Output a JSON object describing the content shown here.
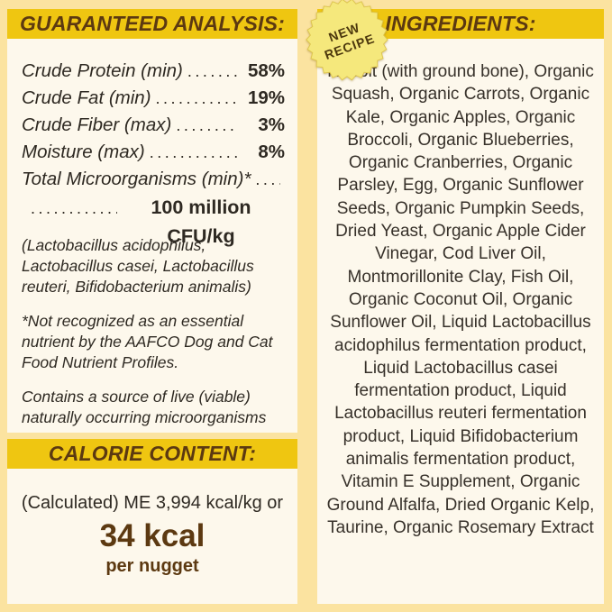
{
  "colors": {
    "outer_background": "#fbe3a0",
    "panel_background": "#fdf8ec",
    "header_bar_yellow": "#efc611",
    "header_text_brown": "#5c3911",
    "body_text": "#2e2922",
    "badge_fill": "#f5e87c",
    "badge_text": "#4c380d"
  },
  "leader": "......................................",
  "guaranteed_analysis": {
    "title": "GUARANTEED ANALYSIS:",
    "rows": [
      {
        "label": "Crude Protein (min)",
        "value": "58%"
      },
      {
        "label": "Crude Fat (min)",
        "value": "19%"
      },
      {
        "label": "Crude Fiber (max)",
        "value": "3%"
      },
      {
        "label": "Moisture (max)",
        "value": "8%"
      },
      {
        "label": "Total Microorganisms (min)*",
        "value": ""
      }
    ],
    "cfu_value": "100 million CFU/kg",
    "organisms_note": "(Lactobacillus acidophilus, Lactobacillus casei, Lactobacillus reuteri, Bifidobacterium animalis)",
    "aafco_note": "*Not recognized as an essential nutrient by the AAFCO Dog and Cat Food Nutrient Profiles.",
    "live_note": "Contains a source of live (viable) naturally occurring microorganisms"
  },
  "calorie_content": {
    "title": "CALORIE CONTENT:",
    "line1": "(Calculated) ME 3,994 kcal/kg or",
    "kcal": "34 kcal",
    "per": "per nugget"
  },
  "ingredients_panel": {
    "title": "INGREDIENTS:",
    "badge_line1": "NEW",
    "badge_line2": "RECIPE",
    "ingredients": "Rabbit (with ground bone), Organic Squash, Organic Carrots, Organic Kale, Organic Apples, Organic Broccoli, Organic Blueberries, Organic Cranberries, Organic Parsley, Egg, Organic Sunflower Seeds, Organic Pumpkin Seeds, Dried Yeast, Organic Apple Cider Vinegar, Cod Liver Oil, Montmorillonite Clay, Fish Oil, Organic Coconut Oil, Organic Sunflower Oil, Liquid Lactobacillus acidophilus fermentation product, Liquid Lactobacillus casei fermentation product, Liquid Lactobacillus reuteri fermentation product, Liquid Bifidobacterium animalis fermentation product, Vitamin E Supplement, Organic Ground Alfalfa, Dried Organic Kelp, Taurine, Organic Rosemary Extract"
  }
}
